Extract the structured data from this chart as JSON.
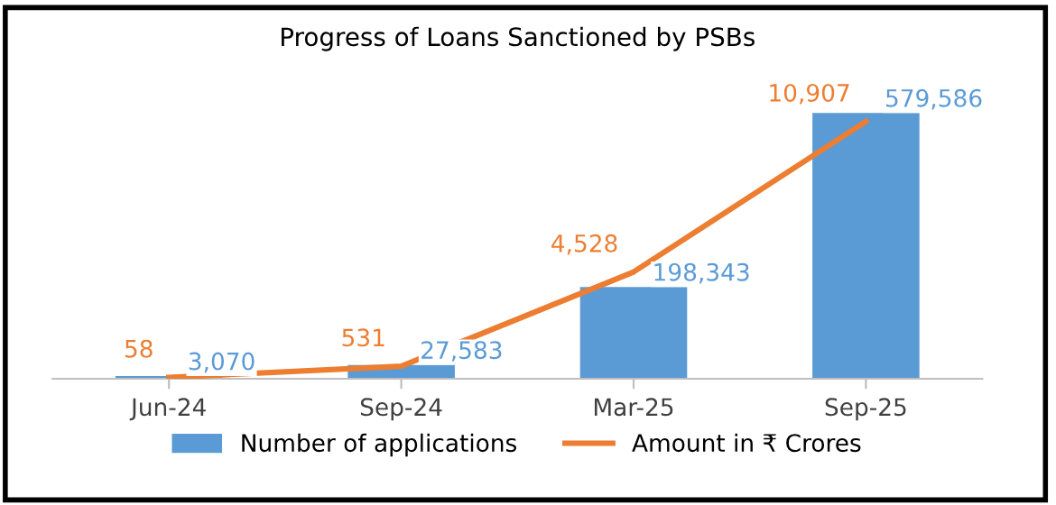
{
  "chart_data": {
    "type": "bar",
    "title": "Progress of Loans Sanctioned by PSBs",
    "categories": [
      "Jun-24",
      "Sep-24",
      "Mar-25",
      "Sep-25"
    ],
    "series": [
      {
        "name": "Number of applications",
        "color": "#5b9bd5",
        "values": [
          3070,
          27583,
          198343,
          579586
        ],
        "value_labels": [
          "3,070",
          "27,583",
          "198,343",
          "579,586"
        ]
      },
      {
        "name": "Amount in ₹ Crores",
        "type": "line",
        "axis": "y2",
        "color": "#ed7d31",
        "values": [
          58,
          531,
          4528,
          10907
        ],
        "value_labels": [
          "58",
          "531",
          "4,528",
          "10,907"
        ]
      }
    ],
    "legend": "bottom",
    "grid": false,
    "tick_labels": "x"
  }
}
